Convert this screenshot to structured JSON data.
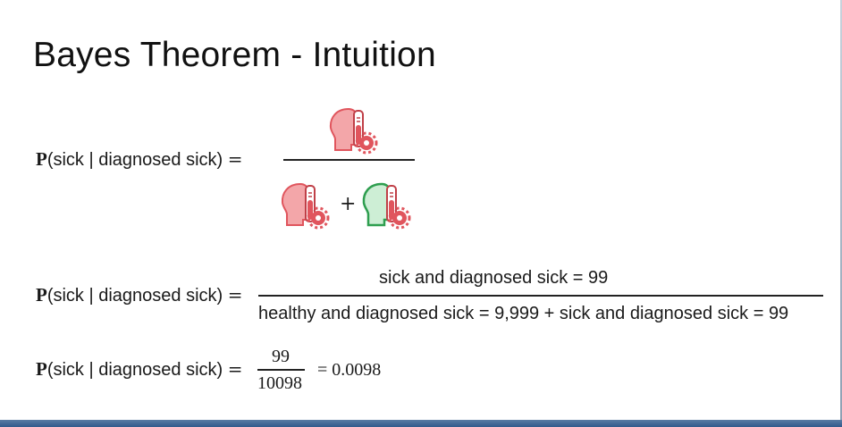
{
  "slide": {
    "title": "Bayes Theorem - Intuition"
  },
  "row1": {
    "p": "P",
    "lhs": "(sick | diagnosed sick)",
    "eq": "=",
    "plus": "+",
    "icons": [
      "sick-diagnosed-sick-icon",
      "sick-diagnosed-sick-icon",
      "healthy-diagnosed-sick-icon"
    ],
    "colors": {
      "sick": "#e0555d",
      "healthy": "#2e9e4f"
    }
  },
  "row2": {
    "p": "P",
    "lhs": "(sick | diagnosed sick)",
    "eq": "=",
    "numerator": "sick and diagnosed sick = 99",
    "denominator": "healthy and diagnosed sick = 9,999 + sick and diagnosed sick = 99"
  },
  "row3": {
    "p": "P",
    "lhs": "(sick | diagnosed sick)",
    "eq": "=",
    "numerator": "99",
    "denominator": "10098",
    "result": "= 0.0098"
  }
}
